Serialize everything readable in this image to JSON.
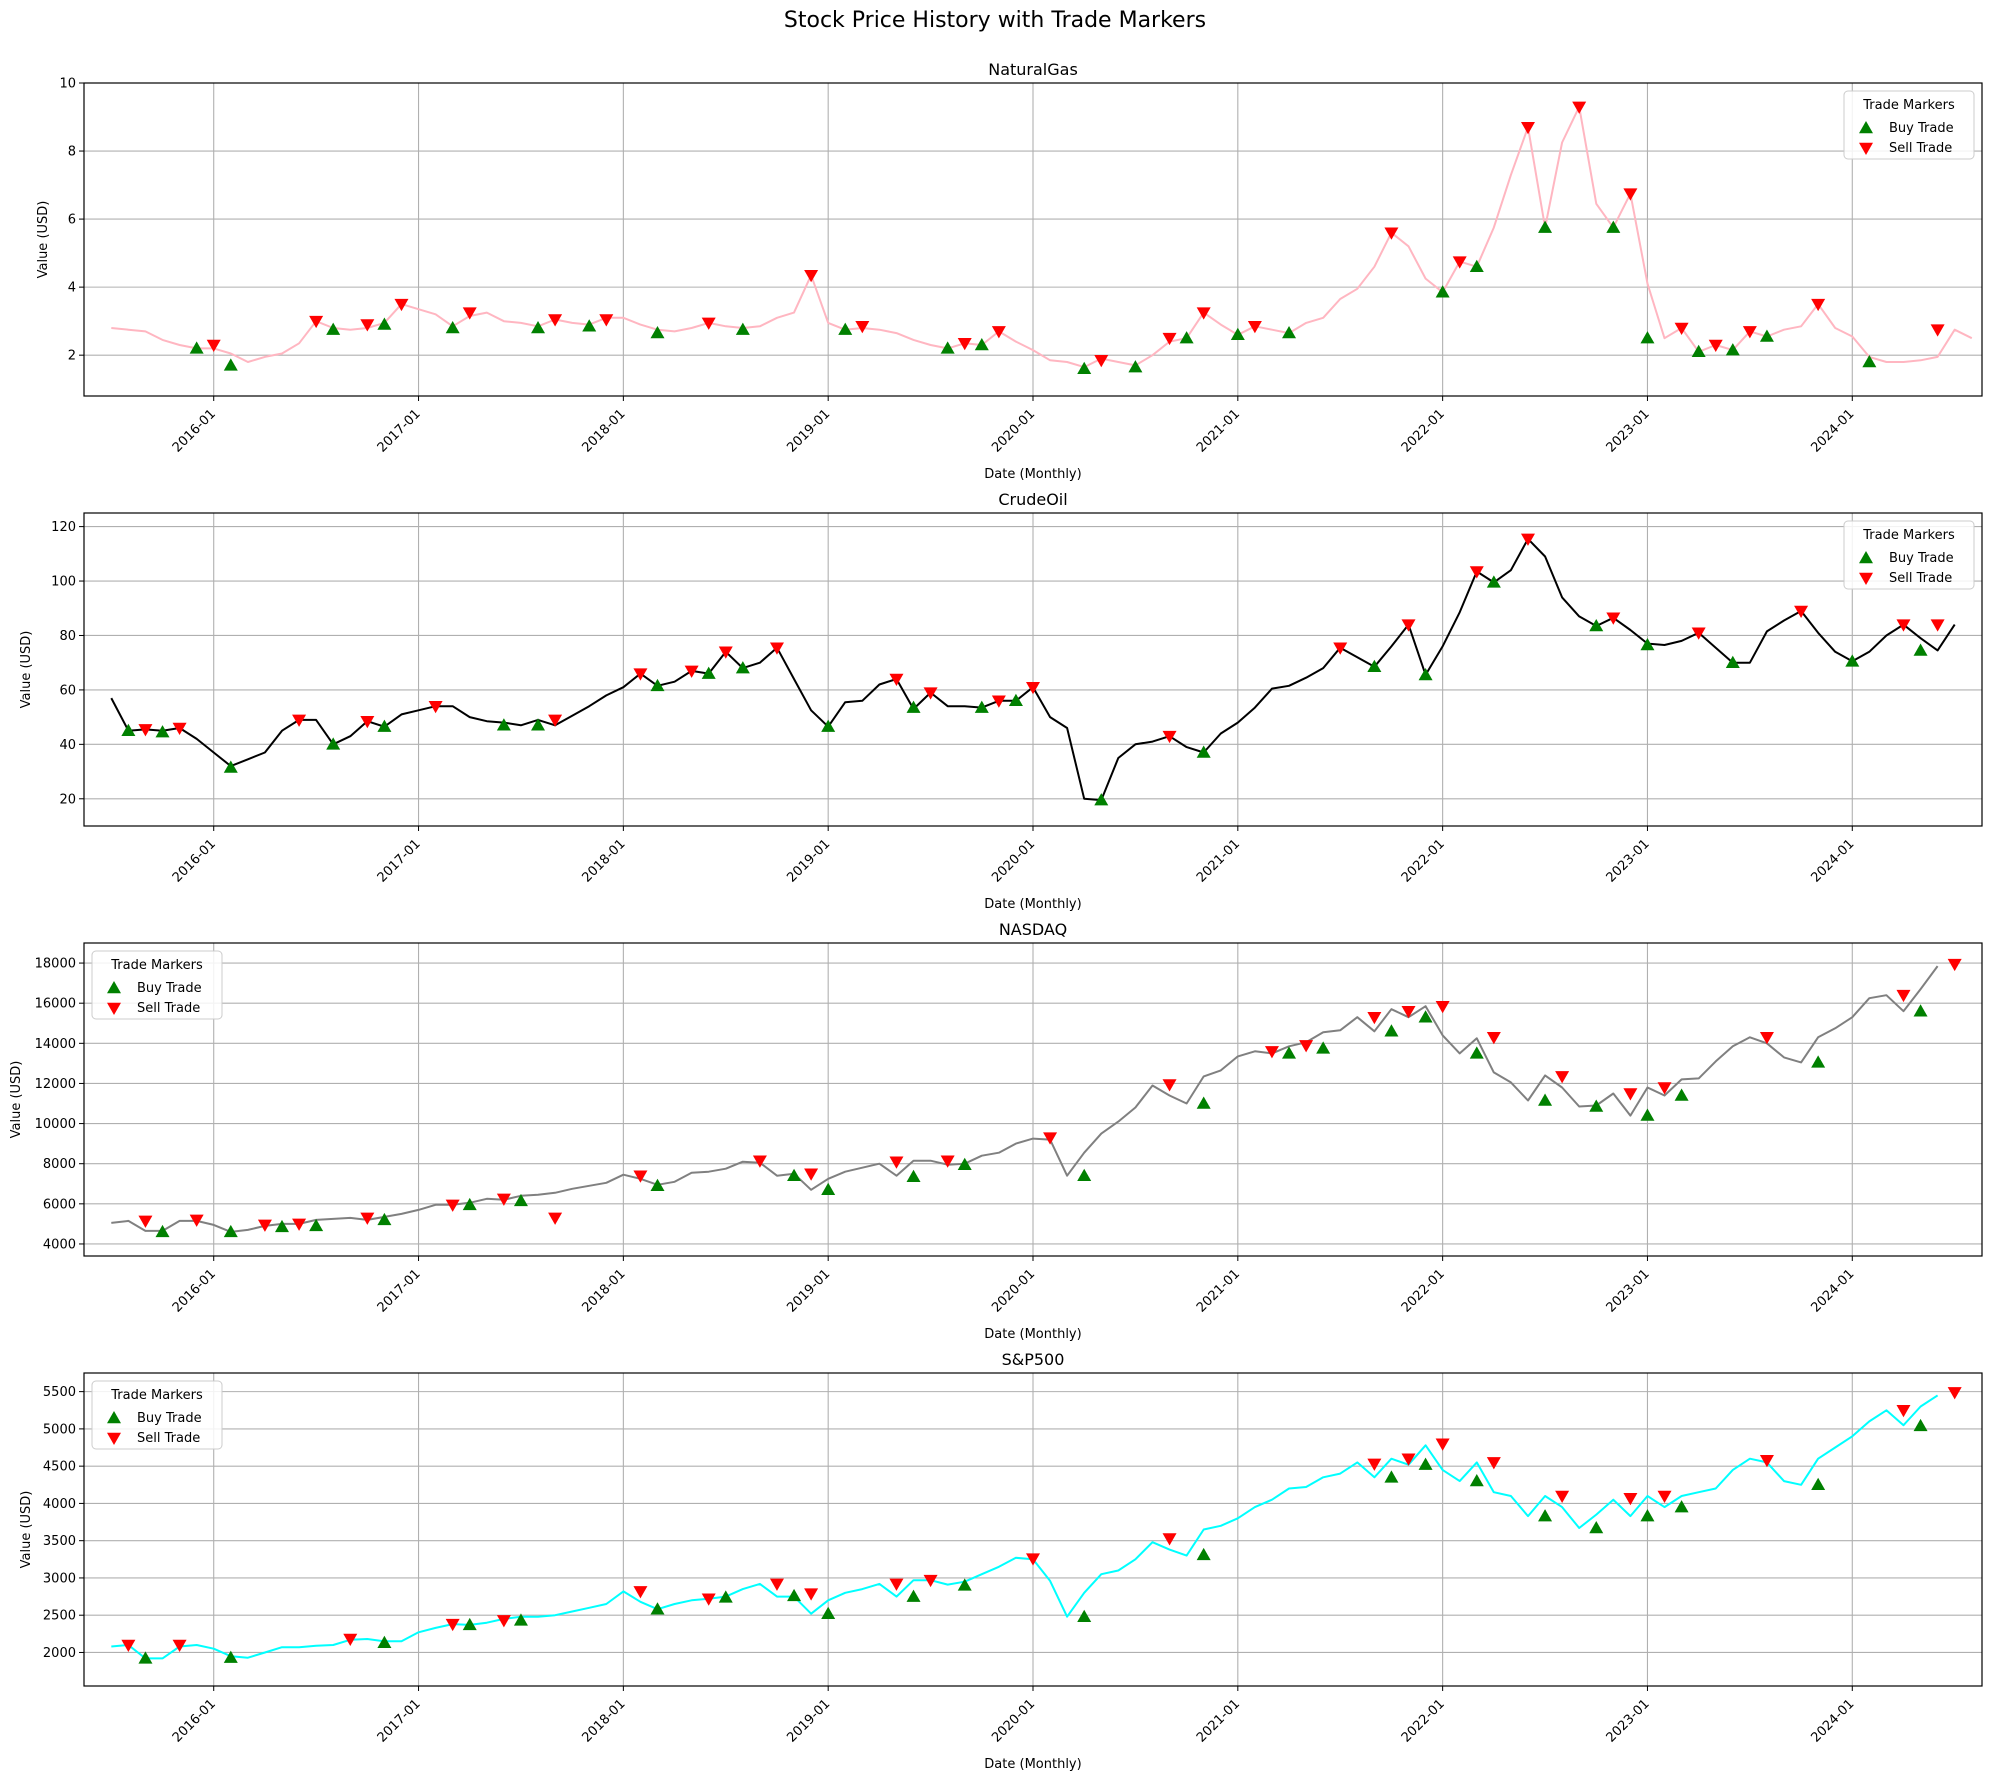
{
  "figure_title": "Stock Price History with Trade Markers",
  "legend": {
    "title": "Trade Markers",
    "buy": "Buy Trade",
    "sell": "Sell Trade"
  },
  "colors": {
    "buy": "#008000",
    "sell": "#ff0000",
    "grid": "#b0b0b0"
  },
  "x_ticks": [
    "2016-01",
    "2017-01",
    "2018-01",
    "2019-01",
    "2020-01",
    "2021-01",
    "2022-01",
    "2023-01",
    "2024-01"
  ],
  "chart_data": [
    {
      "type": "line",
      "title": "NaturalGas",
      "xlabel": "Date (Monthly)",
      "ylabel": "Value (USD)",
      "ylim": [
        0.8,
        10
      ],
      "yticks": [
        2,
        4,
        6,
        8,
        10
      ],
      "line_color": "#ffb6c1",
      "legend_position": "top-right",
      "grid": true,
      "x_start": "2015-07",
      "values": [
        2.8,
        2.75,
        2.7,
        2.45,
        2.3,
        2.2,
        2.2,
        2.05,
        1.8,
        1.95,
        2.05,
        2.35,
        3.0,
        2.8,
        2.75,
        2.8,
        2.95,
        3.5,
        3.35,
        3.2,
        2.85,
        3.15,
        3.25,
        3.0,
        2.95,
        2.85,
        3.05,
        2.95,
        2.9,
        3.1,
        3.1,
        2.9,
        2.75,
        2.7,
        2.8,
        2.95,
        2.85,
        2.8,
        2.85,
        3.1,
        3.25,
        4.35,
        2.95,
        2.75,
        2.8,
        2.75,
        2.65,
        2.45,
        2.3,
        2.2,
        2.35,
        2.3,
        2.7,
        2.4,
        2.15,
        1.85,
        1.8,
        1.65,
        1.9,
        1.8,
        1.7,
        2.0,
        2.4,
        2.5,
        3.25,
        2.9,
        2.6,
        2.85,
        2.75,
        2.65,
        2.95,
        3.1,
        3.65,
        3.95,
        4.6,
        5.6,
        5.2,
        4.25,
        3.85,
        4.75,
        4.6,
        5.75,
        7.3,
        8.7,
        5.75,
        8.25,
        9.3,
        6.45,
        5.75,
        6.75,
        4.1,
        2.5,
        2.8,
        2.1,
        2.3,
        2.15,
        2.7,
        2.55,
        2.75,
        2.85,
        3.5,
        2.8,
        2.55,
        1.95,
        1.8,
        1.8,
        1.85,
        1.95,
        2.75,
        2.5
      ],
      "buy": [
        [
          "2015-12",
          2.2
        ],
        [
          "2016-02",
          1.7
        ],
        [
          "2016-08",
          2.75
        ],
        [
          "2016-11",
          2.9
        ],
        [
          "2017-03",
          2.8
        ],
        [
          "2017-08",
          2.8
        ],
        [
          "2017-11",
          2.85
        ],
        [
          "2018-03",
          2.65
        ],
        [
          "2018-08",
          2.75
        ],
        [
          "2019-02",
          2.75
        ],
        [
          "2019-08",
          2.2
        ],
        [
          "2019-10",
          2.3
        ],
        [
          "2020-04",
          1.6
        ],
        [
          "2020-07",
          1.65
        ],
        [
          "2020-10",
          2.5
        ],
        [
          "2021-01",
          2.6
        ],
        [
          "2021-04",
          2.65
        ],
        [
          "2022-01",
          3.85
        ],
        [
          "2022-03",
          4.6
        ],
        [
          "2022-07",
          5.75
        ],
        [
          "2022-11",
          5.75
        ],
        [
          "2023-01",
          2.5
        ],
        [
          "2023-04",
          2.1
        ],
        [
          "2023-06",
          2.15
        ],
        [
          "2023-08",
          2.55
        ],
        [
          "2024-02",
          1.8
        ]
      ],
      "sell": [
        [
          "2016-01",
          2.3
        ],
        [
          "2016-07",
          3.0
        ],
        [
          "2016-10",
          2.9
        ],
        [
          "2016-12",
          3.5
        ],
        [
          "2017-04",
          3.25
        ],
        [
          "2017-09",
          3.05
        ],
        [
          "2017-12",
          3.05
        ],
        [
          "2018-06",
          2.95
        ],
        [
          "2018-12",
          4.35
        ],
        [
          "2019-03",
          2.85
        ],
        [
          "2019-09",
          2.35
        ],
        [
          "2019-11",
          2.7
        ],
        [
          "2020-05",
          1.85
        ],
        [
          "2020-09",
          2.5
        ],
        [
          "2020-11",
          3.25
        ],
        [
          "2021-02",
          2.85
        ],
        [
          "2021-10",
          5.6
        ],
        [
          "2022-02",
          4.75
        ],
        [
          "2022-06",
          8.7
        ],
        [
          "2022-09",
          9.3
        ],
        [
          "2022-12",
          6.75
        ],
        [
          "2023-03",
          2.8
        ],
        [
          "2023-05",
          2.3
        ],
        [
          "2023-07",
          2.7
        ],
        [
          "2023-11",
          3.5
        ],
        [
          "2024-06",
          2.75
        ]
      ]
    },
    {
      "type": "line",
      "title": "CrudeOil",
      "xlabel": "Date (Monthly)",
      "ylabel": "Value (USD)",
      "ylim": [
        10,
        125
      ],
      "yticks": [
        20,
        40,
        60,
        80,
        100,
        120
      ],
      "line_color": "#000000",
      "legend_position": "top-right",
      "grid": true,
      "x_start": "2015-07",
      "values": [
        57,
        45,
        45.5,
        45,
        46,
        42,
        37,
        32,
        34.5,
        37,
        45,
        49,
        49,
        40,
        43,
        48.5,
        46.5,
        51,
        52.5,
        54,
        54,
        50,
        48.5,
        48,
        47,
        49,
        47,
        50.5,
        54,
        58,
        61,
        66,
        61.5,
        63,
        67,
        66,
        74,
        68,
        70,
        75.5,
        64,
        52.5,
        46.5,
        55.5,
        56,
        62,
        64,
        53,
        59,
        54,
        54,
        53.5,
        56,
        56,
        61,
        50,
        46,
        20,
        19.5,
        35,
        40,
        41,
        43,
        39,
        37,
        44,
        48,
        53.5,
        60.5,
        61.5,
        64.5,
        68,
        75.5,
        72,
        68.5,
        76,
        84,
        65.5,
        76,
        88.5,
        103.5,
        99.5,
        104,
        115.5,
        109,
        94,
        87,
        83.5,
        86.5,
        82,
        77,
        76.5,
        78,
        81,
        75.5,
        70,
        70,
        81.5,
        85.5,
        89,
        81,
        74,
        70.5,
        74,
        80,
        84,
        79,
        74.5,
        84
      ],
      "buy": [
        [
          "2015-08",
          45
        ],
        [
          "2015-10",
          44.5
        ],
        [
          "2016-02",
          31.5
        ],
        [
          "2016-08",
          40
        ],
        [
          "2016-11",
          46.5
        ],
        [
          "2017-06",
          47
        ],
        [
          "2017-08",
          47
        ],
        [
          "2018-03",
          61.5
        ],
        [
          "2018-06",
          66
        ],
        [
          "2018-08",
          68
        ],
        [
          "2019-01",
          46.5
        ],
        [
          "2019-06",
          53.5
        ],
        [
          "2019-10",
          53.5
        ],
        [
          "2019-12",
          56
        ],
        [
          "2020-05",
          19.5
        ],
        [
          "2020-11",
          37
        ],
        [
          "2021-09",
          68.5
        ],
        [
          "2021-12",
          65.5
        ],
        [
          "2022-04",
          99.5
        ],
        [
          "2022-10",
          83.5
        ],
        [
          "2023-01",
          76.5
        ],
        [
          "2023-06",
          70
        ],
        [
          "2024-01",
          70.5
        ],
        [
          "2024-05",
          74.5
        ]
      ],
      "sell": [
        [
          "2015-09",
          45.5
        ],
        [
          "2015-11",
          46
        ],
        [
          "2016-06",
          49
        ],
        [
          "2016-10",
          48.5
        ],
        [
          "2017-02",
          54
        ],
        [
          "2017-09",
          49
        ],
        [
          "2018-02",
          66
        ],
        [
          "2018-05",
          67
        ],
        [
          "2018-07",
          74
        ],
        [
          "2018-10",
          75.5
        ],
        [
          "2019-05",
          64
        ],
        [
          "2019-07",
          59
        ],
        [
          "2019-11",
          56
        ],
        [
          "2020-01",
          61
        ],
        [
          "2020-09",
          43
        ],
        [
          "2021-07",
          75.5
        ],
        [
          "2021-11",
          84
        ],
        [
          "2022-03",
          103.5
        ],
        [
          "2022-06",
          115.5
        ],
        [
          "2022-11",
          86.5
        ],
        [
          "2023-04",
          81
        ],
        [
          "2023-10",
          89
        ],
        [
          "2024-04",
          84
        ],
        [
          "2024-06",
          84
        ]
      ]
    },
    {
      "type": "line",
      "title": "NASDAQ",
      "xlabel": "Date (Monthly)",
      "ylabel": "Value (USD)",
      "ylim": [
        3400,
        19000
      ],
      "yticks": [
        4000,
        6000,
        8000,
        10000,
        12000,
        14000,
        16000,
        18000
      ],
      "line_color": "#808080",
      "legend_position": "top-left",
      "grid": true,
      "x_start": "2015-07",
      "values": [
        5050,
        5150,
        4650,
        4650,
        5150,
        5150,
        4950,
        4600,
        4700,
        4900,
        5000,
        5000,
        5200,
        5250,
        5300,
        5200,
        5350,
        5500,
        5700,
        5950,
        5950,
        6050,
        6250,
        6200,
        6400,
        6450,
        6550,
        6750,
        6900,
        7050,
        7450,
        7250,
        6950,
        7100,
        7550,
        7600,
        7750,
        8100,
        8050,
        7400,
        7500,
        6700,
        7250,
        7600,
        7800,
        8000,
        7400,
        8150,
        8150,
        7950,
        8000,
        8400,
        8550,
        9000,
        9250,
        9200,
        7400,
        8550,
        9500,
        10100,
        10800,
        11900,
        11400,
        11000,
        12350,
        12650,
        13350,
        13600,
        13500,
        13850,
        14050,
        14550,
        14650,
        15300,
        14600,
        15700,
        15300,
        15850,
        14400,
        13500,
        14250,
        12550,
        12050,
        11150,
        12400,
        11800,
        10850,
        10900,
        11500,
        10400,
        11800,
        11400,
        12200,
        12250,
        13100,
        13850,
        14300,
        14000,
        13300,
        13050,
        14300,
        14750,
        15300,
        16250,
        16400,
        15600,
        16700,
        17850
      ],
      "buy": [
        [
          "2015-10",
          4600
        ],
        [
          "2016-02",
          4600
        ],
        [
          "2016-05",
          4850
        ],
        [
          "2016-07",
          4900
        ],
        [
          "2016-11",
          5200
        ],
        [
          "2017-04",
          5950
        ],
        [
          "2017-07",
          6150
        ],
        [
          "2018-03",
          6900
        ],
        [
          "2018-11",
          7400
        ],
        [
          "2019-01",
          6700
        ],
        [
          "2019-06",
          7350
        ],
        [
          "2019-09",
          7950
        ],
        [
          "2020-04",
          7400
        ],
        [
          "2020-11",
          11000
        ],
        [
          "2021-04",
          13500
        ],
        [
          "2021-06",
          13750
        ],
        [
          "2021-10",
          14600
        ],
        [
          "2021-12",
          15300
        ],
        [
          "2022-03",
          13500
        ],
        [
          "2022-07",
          11150
        ],
        [
          "2022-10",
          10850
        ],
        [
          "2023-01",
          10400
        ],
        [
          "2023-03",
          11400
        ],
        [
          "2023-11",
          13050
        ],
        [
          "2024-05",
          15600
        ]
      ],
      "sell": [
        [
          "2015-09",
          5150
        ],
        [
          "2015-12",
          5200
        ],
        [
          "2016-04",
          4950
        ],
        [
          "2016-06",
          5000
        ],
        [
          "2016-10",
          5300
        ],
        [
          "2017-03",
          5950
        ],
        [
          "2017-06",
          6250
        ],
        [
          "2017-09",
          5300
        ],
        [
          "2018-02",
          7400
        ],
        [
          "2018-09",
          8150
        ],
        [
          "2018-12",
          7500
        ],
        [
          "2019-05",
          8100
        ],
        [
          "2019-08",
          8150
        ],
        [
          "2020-02",
          9300
        ],
        [
          "2020-09",
          11950
        ],
        [
          "2021-03",
          13600
        ],
        [
          "2021-05",
          13900
        ],
        [
          "2021-09",
          15300
        ],
        [
          "2021-11",
          15600
        ],
        [
          "2022-01",
          15850
        ],
        [
          "2022-04",
          14300
        ],
        [
          "2022-08",
          12350
        ],
        [
          "2022-12",
          11500
        ],
        [
          "2023-02",
          11800
        ],
        [
          "2023-08",
          14300
        ],
        [
          "2024-04",
          16400
        ],
        [
          "2024-07",
          17950
        ]
      ]
    },
    {
      "type": "line",
      "title": "S&P500",
      "xlabel": "Date (Monthly)",
      "ylabel": "Value (USD)",
      "ylim": [
        1550,
        5750
      ],
      "yticks": [
        2000,
        2500,
        3000,
        3500,
        4000,
        4500,
        5000,
        5500
      ],
      "line_color": "#00ffff",
      "legend_position": "top-left",
      "grid": true,
      "x_start": "2015-07",
      "values": [
        2080,
        2100,
        1920,
        1920,
        2080,
        2100,
        2050,
        1950,
        1930,
        2000,
        2070,
        2070,
        2090,
        2100,
        2170,
        2180,
        2150,
        2150,
        2270,
        2330,
        2380,
        2370,
        2400,
        2450,
        2480,
        2480,
        2500,
        2550,
        2600,
        2650,
        2820,
        2680,
        2580,
        2650,
        2700,
        2720,
        2750,
        2850,
        2920,
        2750,
        2750,
        2520,
        2700,
        2800,
        2850,
        2920,
        2750,
        2970,
        2970,
        2910,
        2950,
        3050,
        3150,
        3270,
        3250,
        2960,
        2480,
        2800,
        3050,
        3100,
        3250,
        3480,
        3380,
        3300,
        3650,
        3700,
        3800,
        3950,
        4050,
        4200,
        4220,
        4350,
        4400,
        4550,
        4350,
        4600,
        4520,
        4780,
        4450,
        4300,
        4550,
        4150,
        4100,
        3830,
        4100,
        3950,
        3670,
        3850,
        4050,
        3830,
        4100,
        3950,
        4100,
        4150,
        4200,
        4450,
        4600,
        4550,
        4300,
        4250,
        4600,
        4750,
        4900,
        5100,
        5250,
        5050,
        5300,
        5450
      ],
      "buy": [
        [
          "2015-09",
          1920
        ],
        [
          "2016-02",
          1930
        ],
        [
          "2016-11",
          2130
        ],
        [
          "2017-04",
          2370
        ],
        [
          "2017-07",
          2430
        ],
        [
          "2018-03",
          2580
        ],
        [
          "2018-07",
          2740
        ],
        [
          "2018-11",
          2760
        ],
        [
          "2019-01",
          2520
        ],
        [
          "2019-06",
          2750
        ],
        [
          "2019-09",
          2900
        ],
        [
          "2020-04",
          2480
        ],
        [
          "2020-11",
          3310
        ],
        [
          "2021-10",
          4350
        ],
        [
          "2021-12",
          4520
        ],
        [
          "2022-03",
          4300
        ],
        [
          "2022-07",
          3830
        ],
        [
          "2022-10",
          3670
        ],
        [
          "2023-01",
          3830
        ],
        [
          "2023-03",
          3950
        ],
        [
          "2023-11",
          4250
        ],
        [
          "2024-05",
          5040
        ]
      ],
      "sell": [
        [
          "2015-08",
          2100
        ],
        [
          "2015-11",
          2100
        ],
        [
          "2016-09",
          2180
        ],
        [
          "2017-03",
          2380
        ],
        [
          "2017-06",
          2430
        ],
        [
          "2018-02",
          2820
        ],
        [
          "2018-06",
          2720
        ],
        [
          "2018-10",
          2920
        ],
        [
          "2018-12",
          2790
        ],
        [
          "2019-05",
          2920
        ],
        [
          "2019-07",
          2970
        ],
        [
          "2020-01",
          3260
        ],
        [
          "2020-09",
          3530
        ],
        [
          "2021-09",
          4530
        ],
        [
          "2021-11",
          4600
        ],
        [
          "2022-01",
          4800
        ],
        [
          "2022-04",
          4550
        ],
        [
          "2022-08",
          4100
        ],
        [
          "2022-12",
          4070
        ],
        [
          "2023-02",
          4100
        ],
        [
          "2023-08",
          4580
        ],
        [
          "2024-04",
          5250
        ],
        [
          "2024-07",
          5490
        ]
      ]
    }
  ]
}
